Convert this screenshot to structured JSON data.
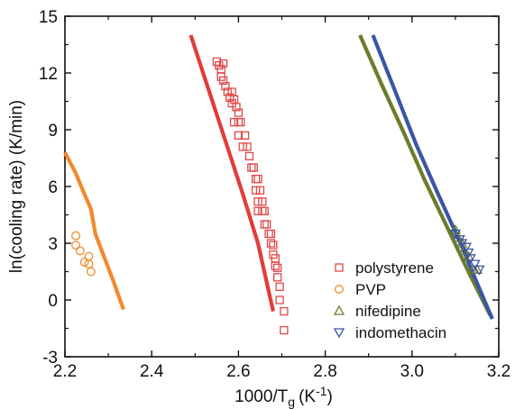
{
  "chart_data": {
    "type": "scatter",
    "title": "",
    "xlabel": "1000/T",
    "xlabel_sub": "g",
    "xlabel_unit": "(K",
    "xlabel_sup": "-1",
    "xlabel_close": ")",
    "ylabel": "ln(cooling rate) (K/min)",
    "xlim": [
      2.2,
      3.2
    ],
    "ylim": [
      -3,
      15
    ],
    "x_ticks": [
      2.2,
      2.4,
      2.6,
      2.8,
      3.0,
      3.2
    ],
    "x_tick_labels": [
      "2.2",
      "2.4",
      "2.6",
      "2.8",
      "3.0",
      "3.2"
    ],
    "y_ticks": [
      -3,
      0,
      3,
      6,
      9,
      12,
      15
    ],
    "y_tick_labels": [
      "-3",
      "0",
      "3",
      "6",
      "9",
      "12",
      "15"
    ],
    "grid": false,
    "legend_position": "bottom-right",
    "series": [
      {
        "name": "polystyrene",
        "kind": "points",
        "marker": "square",
        "color": "#e04848",
        "points": [
          [
            2.55,
            12.6
          ],
          [
            2.555,
            12.4
          ],
          [
            2.56,
            12.2
          ],
          [
            2.565,
            12.5
          ],
          [
            2.56,
            11.8
          ],
          [
            2.565,
            11.6
          ],
          [
            2.57,
            11.3
          ],
          [
            2.575,
            11.0
          ],
          [
            2.58,
            10.7
          ],
          [
            2.585,
            11.0
          ],
          [
            2.585,
            10.4
          ],
          [
            2.59,
            10.6
          ],
          [
            2.595,
            10.2
          ],
          [
            2.6,
            9.9
          ],
          [
            2.59,
            9.4
          ],
          [
            2.6,
            9.4
          ],
          [
            2.605,
            9.4
          ],
          [
            2.6,
            8.7
          ],
          [
            2.615,
            8.7
          ],
          [
            2.62,
            8.1
          ],
          [
            2.61,
            8.1
          ],
          [
            2.625,
            7.6
          ],
          [
            2.63,
            7.0
          ],
          [
            2.635,
            7.0
          ],
          [
            2.64,
            6.4
          ],
          [
            2.645,
            6.4
          ],
          [
            2.64,
            5.8
          ],
          [
            2.65,
            5.8
          ],
          [
            2.645,
            5.2
          ],
          [
            2.655,
            5.2
          ],
          [
            2.645,
            4.7
          ],
          [
            2.655,
            4.7
          ],
          [
            2.66,
            4.7
          ],
          [
            2.66,
            4.0
          ],
          [
            2.665,
            4.0
          ],
          [
            2.67,
            3.5
          ],
          [
            2.675,
            3.5
          ],
          [
            2.675,
            3.0
          ],
          [
            2.68,
            2.9
          ],
          [
            2.68,
            2.4
          ],
          [
            2.685,
            2.2
          ],
          [
            2.685,
            1.8
          ],
          [
            2.69,
            1.7
          ],
          [
            2.69,
            1.2
          ],
          [
            2.695,
            0.7
          ],
          [
            2.695,
            0.0
          ],
          [
            2.705,
            -0.6
          ],
          [
            2.705,
            -1.6
          ]
        ]
      },
      {
        "name": "PVP",
        "kind": "points",
        "marker": "circle",
        "color": "#f08a2c",
        "points": [
          [
            2.225,
            3.4
          ],
          [
            2.225,
            2.9
          ],
          [
            2.235,
            2.6
          ],
          [
            2.255,
            2.3
          ],
          [
            2.245,
            2.0
          ],
          [
            2.255,
            1.9
          ],
          [
            2.26,
            1.5
          ]
        ]
      },
      {
        "name": "nifedipine",
        "kind": "points",
        "marker": "triangle-up",
        "color": "#6b7d2a",
        "points": [
          [
            3.1,
            3.7
          ],
          [
            3.105,
            3.3
          ],
          [
            3.115,
            3.0
          ],
          [
            3.12,
            2.6
          ],
          [
            3.13,
            2.3
          ],
          [
            3.14,
            1.6
          ],
          [
            3.15,
            1.6
          ]
        ]
      },
      {
        "name": "indomethacin",
        "kind": "points",
        "marker": "triangle-down",
        "color": "#3b56a6",
        "points": [
          [
            3.1,
            3.5
          ],
          [
            3.11,
            3.2
          ],
          [
            3.115,
            3.0
          ],
          [
            3.125,
            2.8
          ],
          [
            3.13,
            2.5
          ],
          [
            3.135,
            2.2
          ],
          [
            3.145,
            1.9
          ],
          [
            3.155,
            1.6
          ]
        ]
      },
      {
        "kind": "line",
        "color": "#e33b3b",
        "points": [
          [
            2.49,
            14.0
          ],
          [
            2.53,
            11.2
          ],
          [
            2.57,
            8.4
          ],
          [
            2.61,
            5.6
          ],
          [
            2.645,
            3.0
          ],
          [
            2.68,
            -0.6
          ]
        ]
      },
      {
        "kind": "line",
        "color": "#f08a2c",
        "points": [
          [
            2.2,
            7.8
          ],
          [
            2.225,
            6.7
          ],
          [
            2.245,
            5.6
          ],
          [
            2.26,
            4.8
          ],
          [
            2.27,
            3.5
          ],
          [
            2.29,
            2.3
          ],
          [
            2.31,
            1.1
          ],
          [
            2.335,
            -0.5
          ]
        ]
      },
      {
        "kind": "line",
        "color": "#6b7d2a",
        "points": [
          [
            2.88,
            14.0
          ],
          [
            2.93,
            11.4
          ],
          [
            2.98,
            8.9
          ],
          [
            3.03,
            6.3
          ],
          [
            3.08,
            3.9
          ],
          [
            3.13,
            1.5
          ],
          [
            3.18,
            -0.8
          ]
        ]
      },
      {
        "kind": "line",
        "color": "#3b56a6",
        "points": [
          [
            2.91,
            14.0
          ],
          [
            2.96,
            11.1
          ],
          [
            3.01,
            8.2
          ],
          [
            3.06,
            5.6
          ],
          [
            3.11,
            3.1
          ],
          [
            3.15,
            0.9
          ],
          [
            3.185,
            -1.0
          ]
        ]
      }
    ]
  }
}
